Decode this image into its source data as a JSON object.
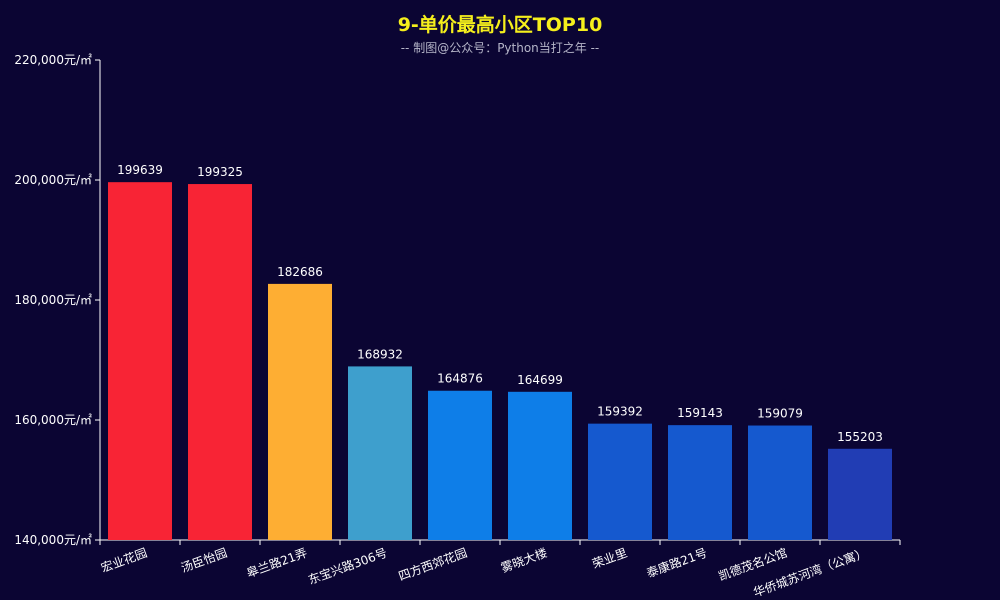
{
  "chart_data": {
    "type": "bar",
    "title": "9-单价最高小区TOP10",
    "subtitle": "-- 制图@公众号：Python当打之年 --",
    "categories": [
      "宏业花园",
      "汤臣怡园",
      "皋兰路21弄",
      "东宝兴路306号",
      "四方西郊花园",
      "雾晓大楼",
      "荣业里",
      "泰康路21号",
      "凯德茂名公馆",
      "华侨城苏河湾（公寓）"
    ],
    "values": [
      199639,
      199325,
      182686,
      168932,
      164876,
      164699,
      159392,
      159143,
      159079,
      155203
    ],
    "bar_colors": [
      "#f82435",
      "#f82435",
      "#feae33",
      "#3e9fcd",
      "#0e7ee8",
      "#0e7ee8",
      "#1559cf",
      "#1559cf",
      "#1559cf",
      "#213db4"
    ],
    "ylim": [
      140000,
      220000
    ],
    "yticks": [
      140000,
      160000,
      180000,
      200000,
      220000
    ],
    "ytick_labels": [
      "140,000元/㎡",
      "160,000元/㎡",
      "180,000元/㎡",
      "200,000元/㎡",
      "220,000元/㎡"
    ],
    "xlabel": "",
    "ylabel": "",
    "grid": false,
    "colors": {
      "background": "#0b0533",
      "title": "#f5ef1c",
      "subtitle": "#b5b5c8",
      "axis": "#ffffff"
    }
  }
}
